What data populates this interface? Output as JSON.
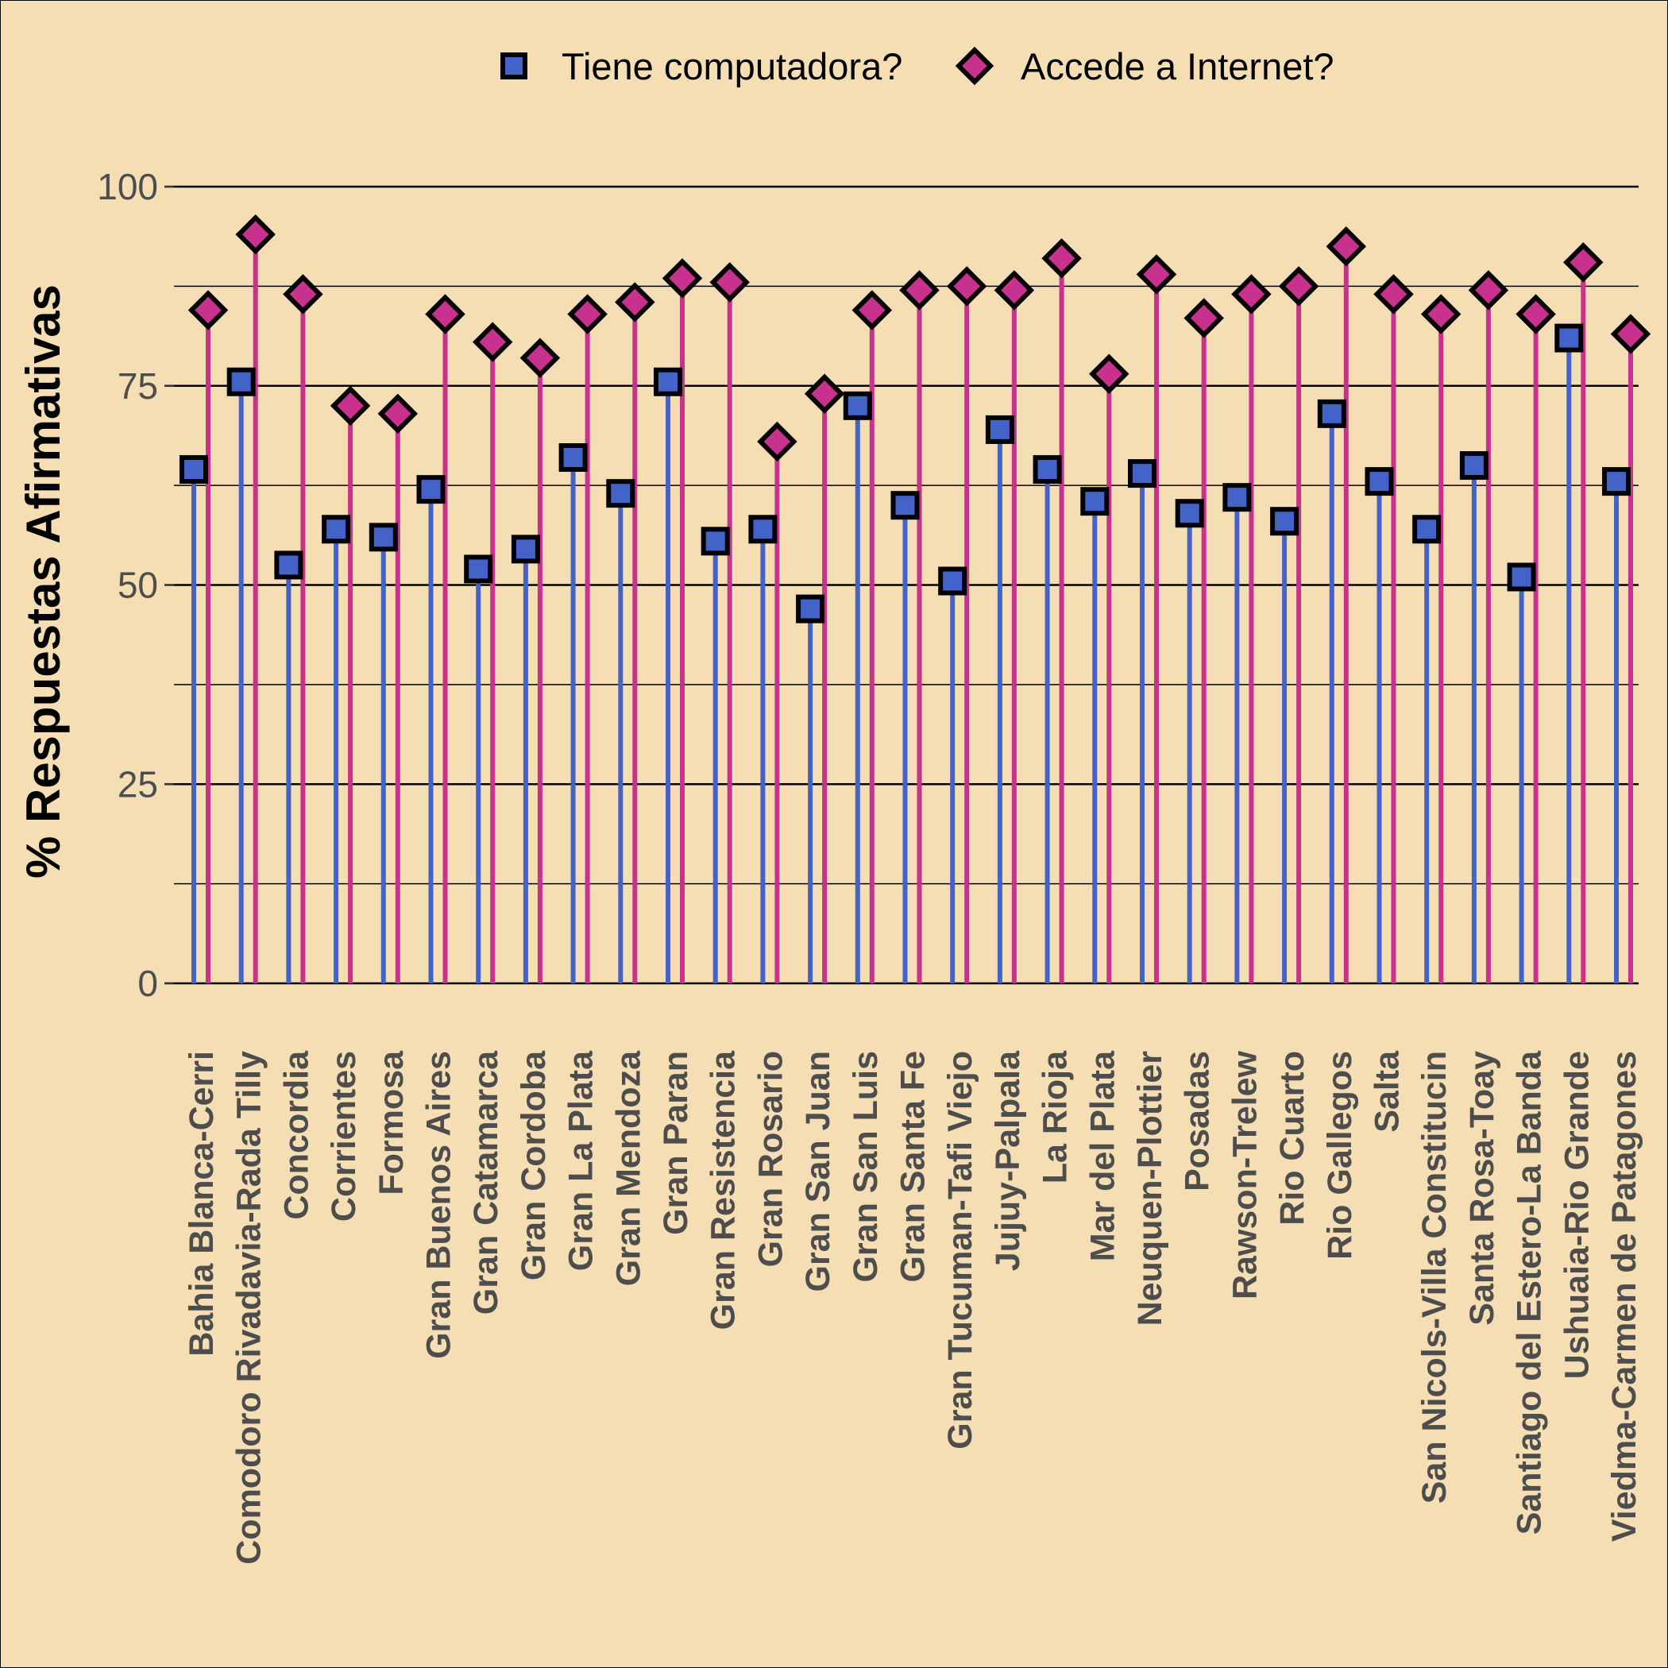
{
  "chart_data": {
    "type": "lollipop",
    "ylabel": "% Respuestas Afirmativas",
    "xlabel": "",
    "ylim": [
      0,
      100
    ],
    "yticks": [
      0,
      25,
      50,
      75,
      100
    ],
    "grid": true,
    "legend_position": "top",
    "categories": [
      "Bahia Blanca-Cerri",
      "Comodoro Rivadavia-Rada Tilly",
      "Concordia",
      "Corrientes",
      "Formosa",
      "Gran Buenos Aires",
      "Gran Catamarca",
      "Gran Cordoba",
      "Gran La Plata",
      "Gran Mendoza",
      "Gran Paran",
      "Gran Resistencia",
      "Gran Rosario",
      "Gran San Juan",
      "Gran San Luis",
      "Gran Santa Fe",
      "Gran Tucuman-Tafi Viejo",
      "Jujuy-Palpala",
      "La Rioja",
      "Mar del Plata",
      "Neuquen-Plottier",
      "Posadas",
      "Rawson-Trelew",
      "Rio Cuarto",
      "Rio Gallegos",
      "Salta",
      "San Nicols-Villa Constitucin",
      "Santa Rosa-Toay",
      "Santiago del Estero-La Banda",
      "Ushuaia-Rio Grande",
      "Viedma-Carmen de Patagones"
    ],
    "series": [
      {
        "name": "Tiene computadora?",
        "color": "#4363C8",
        "marker": "square",
        "values": [
          64.5,
          75.5,
          52.5,
          57,
          56,
          62,
          52,
          54.5,
          66,
          61.5,
          75.5,
          55.5,
          57,
          47,
          72.5,
          60,
          50.5,
          69.5,
          64.5,
          60.5,
          64,
          59,
          61,
          58,
          71.5,
          63,
          57,
          65,
          51,
          81,
          63
        ]
      },
      {
        "name": "Accede a Internet?",
        "color": "#C8318E",
        "marker": "diamond",
        "values": [
          84.5,
          94,
          86.5,
          72.5,
          71.5,
          84,
          80.5,
          78.5,
          84,
          85.5,
          88.5,
          88,
          68,
          74,
          84.5,
          87,
          87.5,
          87,
          91,
          76.5,
          89,
          83.5,
          86.5,
          87.5,
          92.5,
          86.5,
          84,
          87,
          84,
          90.5,
          81.5
        ]
      }
    ]
  }
}
